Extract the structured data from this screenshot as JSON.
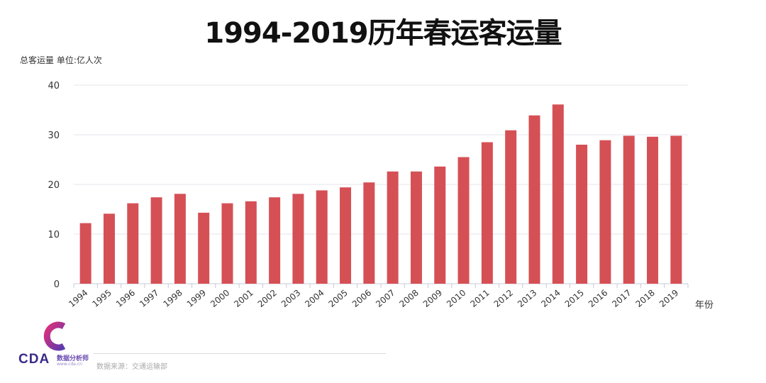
{
  "title": "1994-2019历年春运客运量",
  "unit_label": "总客运量 单位:亿人次",
  "source": "数据来源：交通运输部",
  "logo": {
    "text": "CDA",
    "subtitle": "数据分析师",
    "url": "www.cda.cn"
  },
  "colors": {
    "bar": "#d55055",
    "grid": "#e4e4ec",
    "axis": "#c8c8d8",
    "logo_magenta": "#e0307a",
    "logo_purple": "#5a3ab0"
  },
  "chart_data": {
    "type": "bar",
    "title": "1994-2019历年春运客运量",
    "xlabel": "年份",
    "ylabel": "总客运量 单位:亿人次",
    "ylim": [
      0,
      40
    ],
    "yticks": [
      0,
      10,
      20,
      30,
      40
    ],
    "grid": true,
    "categories": [
      "1994",
      "1995",
      "1996",
      "1997",
      "1998",
      "1999",
      "2000",
      "2001",
      "2002",
      "2003",
      "2004",
      "2005",
      "2006",
      "2007",
      "2008",
      "2009",
      "2010",
      "2011",
      "2012",
      "2013",
      "2014",
      "2015",
      "2016",
      "2017",
      "2018",
      "2019"
    ],
    "values": [
      12.2,
      14.1,
      16.2,
      17.4,
      18.1,
      14.3,
      16.2,
      16.6,
      17.4,
      18.1,
      18.8,
      19.4,
      20.4,
      22.6,
      22.6,
      23.6,
      25.5,
      28.5,
      30.9,
      33.9,
      36.1,
      28.0,
      28.9,
      29.8,
      29.6,
      29.8
    ]
  }
}
